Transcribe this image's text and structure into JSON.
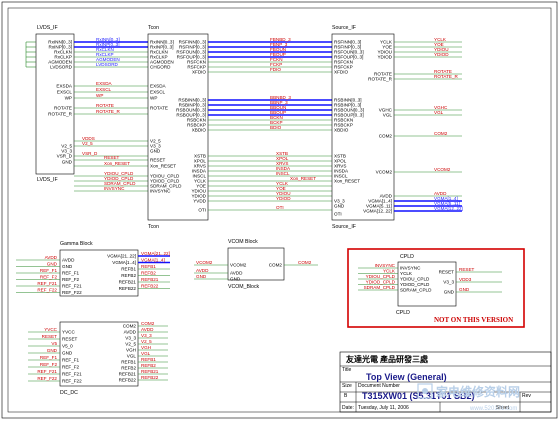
{
  "blocks": {
    "lvds": {
      "title": "LVDS_IF",
      "pins": [
        "RxINN[0..3]",
        "RxINP[0..3]",
        "RxCLKN",
        "RxCLKP",
        "AGMODEN",
        "LVDSORD",
        "EXSDA",
        "EXSCL",
        "WP",
        "ROTATE",
        "ROTATE_R",
        "V2_5",
        "V3_3",
        "VSR_D",
        "GND"
      ],
      "caption": "LVDS_IF"
    },
    "tcon": {
      "title": "Tcon",
      "left_pins": [
        "RxINN[0..3]",
        "RxINP[0..3]",
        "RxCLKN",
        "RxCLKP",
        "AGMODEN",
        "CHGORD",
        "EXSDA",
        "EXSCL",
        "WP",
        "ROTATE",
        "V2_5",
        "V3_3",
        "GND",
        "RESET",
        "Xon_RESET",
        "YDIOU_CPLD",
        "YDIOD_CPLD",
        "SDRAM_CPLD",
        "INVSYNC"
      ],
      "right_pins": [
        "RSFINN[0..3]",
        "RSFINP[0..3]",
        "RSFOUN[0..3]",
        "RSFOUP[0..3]",
        "RSFCKN",
        "RSFCKP",
        "XFDIO",
        "RSBINN[0..3]",
        "RSBINP[0..3]",
        "RSBOUN[0..3]",
        "RSBOUP[0..3]",
        "RSBCKN",
        "RSBCKP",
        "XBDIO",
        "XSTB",
        "XPOL",
        "XRVS",
        "INSDA",
        "INSCL",
        "YCLK",
        "YOE",
        "YDIOU",
        "YDIOD",
        "YVDD",
        "OTI"
      ],
      "caption": "Tcon"
    },
    "source": {
      "title": "Source_IF",
      "left_pins": [
        "RSFINN[0..3]",
        "RSFINP[0..3]",
        "RSFOUN[0..3]",
        "RSFOUP[0..3]",
        "RSFCKN",
        "RSFCKP",
        "XFDIO",
        "RSBINN[0..3]",
        "RSBINP[0..3]",
        "RSBOUN[0..3]",
        "RSBOUP[0..3]",
        "RSBCKN",
        "RSBCKP",
        "XBDIO",
        "XSTB",
        "XPOL",
        "XRVS",
        "INSDA",
        "INSCL",
        "Xon_RESET",
        "V3_3",
        "GND",
        "OTI"
      ],
      "right_pins": [
        "YCLK",
        "YOE",
        "YDIOU",
        "YDIOD",
        "ROTATE",
        "ROTATE_R",
        "VGHC",
        "VGL",
        "COM2",
        "VCOM2",
        "AVDD",
        "VGMA[1..4]",
        "VGMA[5..11]",
        "VGMA[12..22]"
      ],
      "caption": "Source_IF"
    },
    "gamma": {
      "title": "Gamma Block",
      "left_pins": [
        "AVDD",
        "GND",
        "REF_F1",
        "REF_F2",
        "REF_F21",
        "REF_F22"
      ],
      "right_pins": [
        "VGMA[21..22]",
        "VGMA[1..4]",
        "REFB1",
        "REFB2",
        "REFB21",
        "REFB22"
      ],
      "caption": ""
    },
    "vcom": {
      "title": "VCOM Block",
      "pins_left": [
        "VCOM2",
        "AVDD",
        "GND"
      ],
      "pins_right": [
        "COM2"
      ],
      "caption": "VCOM_Block"
    },
    "dcdc": {
      "title": "",
      "left_pins": [
        "YVCC",
        "RESET",
        "V5_0",
        "GND",
        "REF_F1",
        "REF_F2",
        "REF_F21",
        "REF_F22"
      ],
      "right_pins": [
        "COM2",
        "AVDD",
        "V3_3",
        "V2_5",
        "VGH",
        "VGL",
        "REFB1",
        "REFB2",
        "REFB21",
        "REFB22"
      ],
      "caption": "DC_DC"
    },
    "cpld": {
      "title": "CPLD",
      "left_pins": [
        "INVSYNC",
        "YCLK",
        "YDIOU_CPLD",
        "YDIOD_CPLD",
        "SDRAM_CPLD"
      ],
      "right_pins": [
        "RESET",
        "V3_3",
        "GND"
      ],
      "caption": "CPLD",
      "note": "NOT ON THIS VERSION"
    }
  },
  "nets": {
    "lvds_right": [
      "RxINN[0..3]",
      "RxINP[0..3]",
      "RxCLKN",
      "RxCLKP",
      "AGMODEN",
      "LVDSORD",
      "EXSDA",
      "EXSCL",
      "WP",
      "ROTATE",
      "ROTATE_R",
      "VDDS",
      "V2_5",
      "VSR_D",
      "RESET",
      "Xon_RESET",
      "YDIOU_CPLD",
      "YDIOD_CPLD",
      "SDRAM_CPLD",
      "INVSYNC"
    ],
    "tcon_source": [
      "FBNBD_3",
      "FBNP_3",
      "FBOUN",
      "FBOUP",
      "FCKN",
      "FCKP",
      "FDIO",
      "BBNBD_3",
      "BBNP_3",
      "BBOUN",
      "BBOUP",
      "BCKN",
      "BCKP",
      "BDIO",
      "XSTB",
      "XPOL",
      "XRVS",
      "INSDA",
      "INSCL",
      "Xon_RESET",
      "YCLK",
      "YOE",
      "YDIOU",
      "YDIOD",
      "OTI"
    ],
    "source_right": [
      "YCLK",
      "YOE",
      "YDIOU",
      "YDIOD",
      "ROTATE",
      "ROTATE_R",
      "VGHC",
      "VGL",
      "COM2",
      "VCOM2",
      "AVDD",
      "VGMA[1..4]",
      "VGMA[5..11]",
      "VGMA[12..22]"
    ],
    "gamma_left": [
      "AVDD",
      "GND",
      "REF_F1",
      "REF_F2",
      "REF_F21",
      "REF_F22"
    ],
    "gamma_right": [
      "VGMA[21..22]",
      "VGMA[1..4]",
      "REFB1",
      "REFB2",
      "REFB21",
      "REFB22"
    ],
    "vcom_left": [
      "VCOM2",
      "AVDD",
      "GND"
    ],
    "vcom_right": [
      "COM2"
    ],
    "dcdc_left": [
      "YVCC",
      "RESET",
      "V5",
      "GND",
      "REF_F1",
      "REF_F2",
      "REF_F21",
      "REF_F22"
    ],
    "dcdc_right": [
      "COM2",
      "AVDD",
      "V3_3",
      "V2_5",
      "VGH",
      "VGL",
      "REFB1",
      "REFB2",
      "REFB21",
      "REFB22"
    ],
    "cpld_left": [
      "INVSYNC",
      "YCLK",
      "YDIOU_CPLD",
      "YDIOD_CPLD",
      "SDRAM_CPLD"
    ],
    "cpld_right": [
      "RESET",
      "VDD3",
      "GND"
    ]
  },
  "title_block": {
    "company": "友達光電  產品研發三處",
    "title_label": "Title",
    "title": "Top View (General)",
    "size_label": "Size",
    "size": "B",
    "doc_label": "Document Number",
    "doc": "T315XW01 (S5.31T01 SB2)",
    "date_label": "Date:",
    "date": "Tuesday, July 11, 2006",
    "sheet_label": "Sheet",
    "rev_label": "Rev"
  },
  "watermark": {
    "main": "家电维修资料网",
    "url": "www.520101.com"
  },
  "colors": {
    "wire": "#2a8a2a",
    "bus": "#1010ff",
    "net_label": "#cc0000",
    "note_border": "#d40000"
  }
}
